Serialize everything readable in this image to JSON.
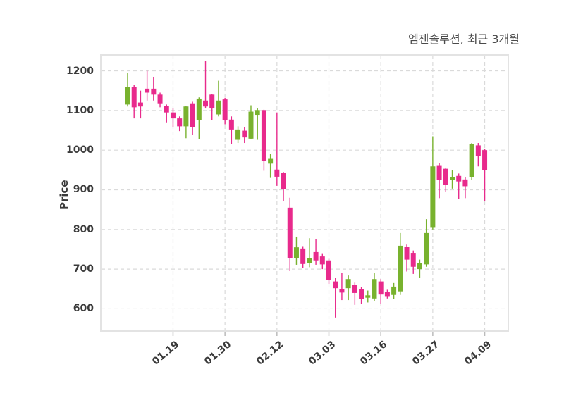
{
  "title": "엠젠솔루션, 최근 3개월",
  "y_axis": {
    "label": "Price"
  },
  "x_axis": {
    "tick_labels": [
      "01.19",
      "01.30",
      "02.12",
      "03.03",
      "03.16",
      "03.27",
      "04.09"
    ]
  },
  "colors": {
    "up": "#78b22e",
    "down": "#e82a8c",
    "grid": "#dadada",
    "frame": "#e3e3e3",
    "tick_mark": "#bbbbbb",
    "tick_text": "#3a3a3a",
    "title_text": "#4a4a4a",
    "background": "#ffffff"
  },
  "chart_data": {
    "type": "candlestick",
    "title": "엠젠솔루션, 최근 3개월",
    "xlabel": "",
    "ylabel": "Price",
    "ylim": [
      544,
      1240
    ],
    "y_ticks": [
      600,
      700,
      800,
      900,
      1000,
      1100,
      1200
    ],
    "x_tick_labels": [
      "01.19",
      "01.30",
      "02.12",
      "03.03",
      "03.16",
      "03.27",
      "04.09"
    ],
    "x_tick_candle_indices": [
      7,
      15,
      23,
      31,
      39,
      47,
      55
    ],
    "grid": "dashed",
    "legend": "none",
    "up_color": "#78b22e",
    "down_color": "#e82a8c",
    "ohlc_order": [
      "open",
      "high",
      "low",
      "close"
    ],
    "candles_ohlc": [
      [
        1115,
        1195,
        1110,
        1160
      ],
      [
        1160,
        1165,
        1080,
        1108
      ],
      [
        1120,
        1150,
        1080,
        1110
      ],
      [
        1155,
        1200,
        1125,
        1145
      ],
      [
        1155,
        1185,
        1125,
        1140
      ],
      [
        1140,
        1145,
        1108,
        1118
      ],
      [
        1112,
        1115,
        1070,
        1095
      ],
      [
        1095,
        1105,
        1058,
        1080
      ],
      [
        1080,
        1085,
        1048,
        1060
      ],
      [
        1060,
        1112,
        1030,
        1110
      ],
      [
        1118,
        1122,
        1038,
        1058
      ],
      [
        1075,
        1133,
        1027,
        1130
      ],
      [
        1125,
        1225,
        1105,
        1110
      ],
      [
        1140,
        1142,
        1075,
        1105
      ],
      [
        1090,
        1175,
        1085,
        1125
      ],
      [
        1128,
        1132,
        1065,
        1076
      ],
      [
        1077,
        1085,
        1015,
        1052
      ],
      [
        1026,
        1060,
        1018,
        1052
      ],
      [
        1049,
        1058,
        1018,
        1032
      ],
      [
        1029,
        1113,
        1027,
        1097
      ],
      [
        1089,
        1105,
        1026,
        1101
      ],
      [
        1101,
        1102,
        948,
        972
      ],
      [
        966,
        990,
        930,
        978
      ],
      [
        951,
        1095,
        910,
        933
      ],
      [
        942,
        945,
        871,
        901
      ],
      [
        855,
        880,
        695,
        728
      ],
      [
        728,
        782,
        711,
        755
      ],
      [
        752,
        758,
        702,
        713
      ],
      [
        716,
        778,
        705,
        728
      ],
      [
        743,
        775,
        711,
        722
      ],
      [
        732,
        740,
        700,
        712
      ],
      [
        722,
        726,
        663,
        672
      ],
      [
        669,
        678,
        578,
        652
      ],
      [
        649,
        690,
        622,
        641
      ],
      [
        652,
        684,
        622,
        675
      ],
      [
        660,
        666,
        610,
        640
      ],
      [
        649,
        655,
        613,
        625
      ],
      [
        628,
        646,
        616,
        634
      ],
      [
        626,
        690,
        619,
        675
      ],
      [
        669,
        675,
        613,
        636
      ],
      [
        643,
        648,
        626,
        632
      ],
      [
        635,
        665,
        624,
        656
      ],
      [
        644,
        791,
        635,
        759
      ],
      [
        756,
        762,
        694,
        724
      ],
      [
        741,
        747,
        688,
        706
      ],
      [
        700,
        724,
        679,
        715
      ],
      [
        712,
        826,
        706,
        791
      ],
      [
        806,
        1035,
        800,
        959
      ],
      [
        962,
        968,
        879,
        924
      ],
      [
        953,
        956,
        894,
        912
      ],
      [
        924,
        950,
        903,
        932
      ],
      [
        935,
        941,
        876,
        921
      ],
      [
        926,
        932,
        879,
        909
      ],
      [
        932,
        1018,
        924,
        1015
      ],
      [
        1012,
        1018,
        959,
        985
      ],
      [
        1000,
        1003,
        871,
        950
      ]
    ]
  }
}
